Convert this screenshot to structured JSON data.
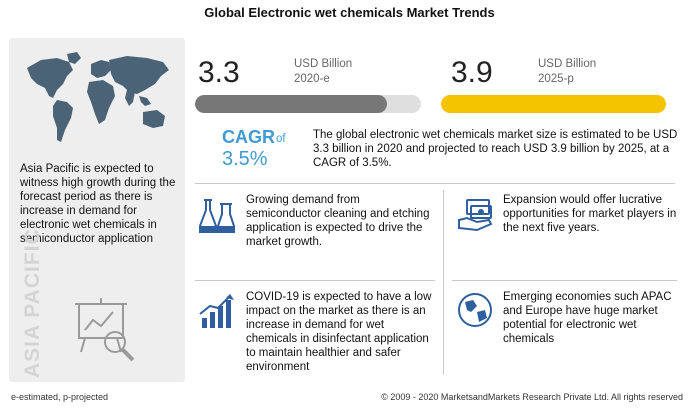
{
  "title": "Global Electronic wet chemicals Market Trends",
  "left_panel": {
    "text": "Asia Pacific is expected to witness high growth during the forecast period as there is increase in demand for electronic wet chemicals in semiconductor application",
    "vertical_label": "ASIA PACIFIC",
    "map_icon": "world-map-icon",
    "chart_icon": "presentation-magnifier-icon"
  },
  "stats": [
    {
      "value": "3.3",
      "unit": "USD Billion",
      "year": "2020-e",
      "bar_fraction": 0.85,
      "bar_color": "#777777"
    },
    {
      "value": "3.9",
      "unit": "USD Billion",
      "year": "2025-p",
      "bar_fraction": 1.0,
      "bar_color": "#f5c400"
    }
  ],
  "cagr": {
    "label": "CAGR",
    "of": "of",
    "value": "3.5%",
    "summary": "The global electronic wet chemicals  market size is estimated to be USD 3.3 billion in 2020 and projected to reach USD 3.9 billion by 2025, at a CAGR of 3.5%."
  },
  "blocks": [
    {
      "icon": "chemical-flasks-icon",
      "text": "Growing demand  from semiconductor cleaning and etching application is expected to drive the market growth."
    },
    {
      "icon": "money-hand-icon",
      "text": "Expansion would offer lucrative opportunities for market players in the next five years."
    },
    {
      "icon": "bar-growth-arrow-icon",
      "text": "COVID-19 is expected to have a low impact on the market as there is an increase in demand for wet chemicals in disinfectant application to maintain healthier and safer environment"
    },
    {
      "icon": "globe-icon",
      "text": "Emerging economies such APAC and Europe have huge market potential for electronic wet chemicals"
    }
  ],
  "colors": {
    "accent_blue": "#3f9ad1",
    "icon_blue": "#2f5f9e",
    "yellow": "#f5c400",
    "grey_bar": "#777777"
  },
  "footnote": "e-estimated, p-projected",
  "copyright": "© 2009 - 2020 MarketsandMarkets Research Private Ltd. All rights reserved"
}
